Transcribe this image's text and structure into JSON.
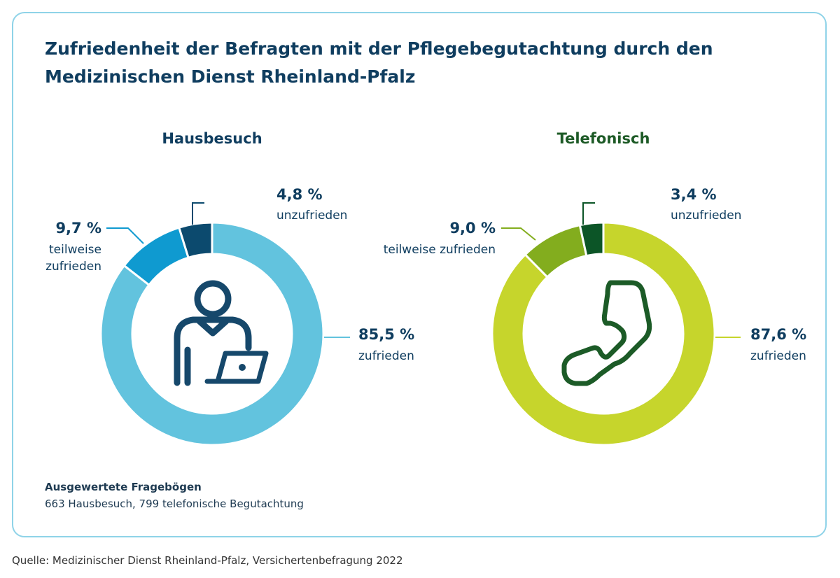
{
  "title_line1": "Zufriedenheit der Befragten mit der Pflegebegutachtung durch den",
  "title_line2": "Medizinischen Dienst Rheinland-Pfalz",
  "chart_data": [
    {
      "type": "pie",
      "title": "Hausbesuch",
      "icon": "person-laptop-icon",
      "slices": [
        {
          "label": "zufrieden",
          "value": 85.5,
          "value_text": "85,5 %",
          "color": "#62c3de"
        },
        {
          "label": "teilweise zufrieden",
          "value": 9.7,
          "value_text": "9,7 %",
          "color": "#0f9ad0"
        },
        {
          "label": "unzufrieden",
          "value": 4.8,
          "value_text": "4,8 %",
          "color": "#0c4a6e"
        }
      ],
      "label_color": "#0f3d5f"
    },
    {
      "type": "pie",
      "title": "Telefonisch",
      "icon": "telephone-handset-icon",
      "slices": [
        {
          "label": "zufrieden",
          "value": 87.6,
          "value_text": "87,6 %",
          "color": "#c6d52c"
        },
        {
          "label": "teilweise zufrieden",
          "value": 9.0,
          "value_text": "9,0 %",
          "color": "#83ad1e"
        },
        {
          "label": "unzufrieden",
          "value": 3.4,
          "value_text": "3,4 %",
          "color": "#0c5527"
        }
      ],
      "label_color": "#0f3d5f"
    }
  ],
  "footnote_head": "Ausgewertete Fragebögen",
  "footnote_text": "663 Hausbesuch, 799 telefonische Begutachtung",
  "source": "Quelle: Medizinischer Dienst Rheinland-Pfalz, Versichertenbefragung 2022"
}
